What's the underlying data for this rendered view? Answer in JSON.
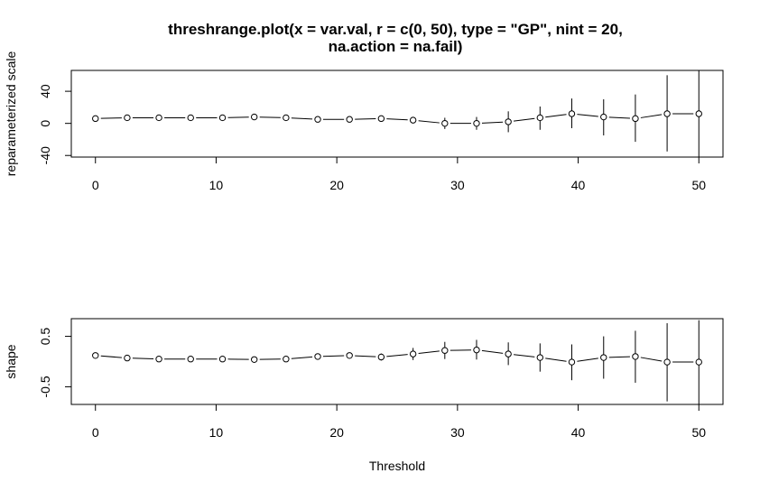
{
  "figure": {
    "title_line1": "threshrange.plot(x = var.val, r = c(0, 50), type = \"GP\", nint = 20,",
    "title_line2": "na.action = na.fail)",
    "xlabel": "Threshold"
  },
  "chart_data": [
    {
      "type": "line",
      "panel": "top",
      "ylabel": "reparameterized scale",
      "x_ticks": [
        0,
        10,
        20,
        30,
        40,
        50
      ],
      "y_ticks": [
        "-40",
        "0",
        "40"
      ],
      "y_tick_values": [
        -40,
        0,
        40
      ],
      "xlim": [
        -2,
        52
      ],
      "ylim": [
        -42,
        66
      ],
      "x": [
        0,
        2.63,
        5.26,
        7.89,
        10.53,
        13.16,
        15.79,
        18.42,
        21.05,
        23.68,
        26.32,
        28.95,
        31.58,
        34.21,
        36.84,
        39.47,
        42.11,
        44.74,
        47.37,
        50
      ],
      "y": [
        6,
        7,
        7,
        7,
        7,
        8,
        7,
        5,
        5,
        6,
        4,
        0,
        0,
        2,
        7,
        12,
        8,
        6,
        12,
        12
      ],
      "lower": [
        4,
        5,
        5,
        5,
        5,
        6,
        5,
        3,
        2,
        3,
        0,
        -7,
        -8,
        -11,
        -8,
        -6,
        -15,
        -23,
        -35,
        -42
      ],
      "upper": [
        8,
        9,
        9,
        9,
        9,
        10,
        9,
        7,
        8,
        9,
        8,
        7,
        8,
        15,
        21,
        31,
        30,
        36,
        60,
        66
      ]
    },
    {
      "type": "line",
      "panel": "bottom",
      "ylabel": "shape",
      "x_ticks": [
        0,
        10,
        20,
        30,
        40,
        50
      ],
      "y_ticks": [
        "-0.5",
        "0.5"
      ],
      "y_tick_values": [
        -0.5,
        0.5
      ],
      "xlim": [
        -2,
        52
      ],
      "ylim": [
        -0.85,
        0.85
      ],
      "x": [
        0,
        2.63,
        5.26,
        7.89,
        10.53,
        13.16,
        15.79,
        18.42,
        21.05,
        23.68,
        26.32,
        28.95,
        31.58,
        34.21,
        36.84,
        39.47,
        42.11,
        44.74,
        47.37,
        50
      ],
      "y": [
        0.12,
        0.07,
        0.05,
        0.05,
        0.05,
        0.04,
        0.05,
        0.1,
        0.12,
        0.09,
        0.15,
        0.22,
        0.23,
        0.15,
        0.08,
        -0.01,
        0.08,
        0.1,
        -0.01,
        -0.01
      ],
      "lower": [
        0.1,
        0.05,
        0.03,
        0.03,
        0.03,
        0.02,
        0.03,
        0.05,
        0.06,
        0.02,
        0.03,
        0.05,
        0.04,
        -0.07,
        -0.2,
        -0.37,
        -0.34,
        -0.42,
        -0.79,
        -0.85
      ],
      "upper": [
        0.14,
        0.09,
        0.07,
        0.07,
        0.07,
        0.06,
        0.07,
        0.15,
        0.18,
        0.16,
        0.27,
        0.39,
        0.43,
        0.38,
        0.36,
        0.34,
        0.5,
        0.61,
        0.76,
        0.82
      ]
    }
  ]
}
